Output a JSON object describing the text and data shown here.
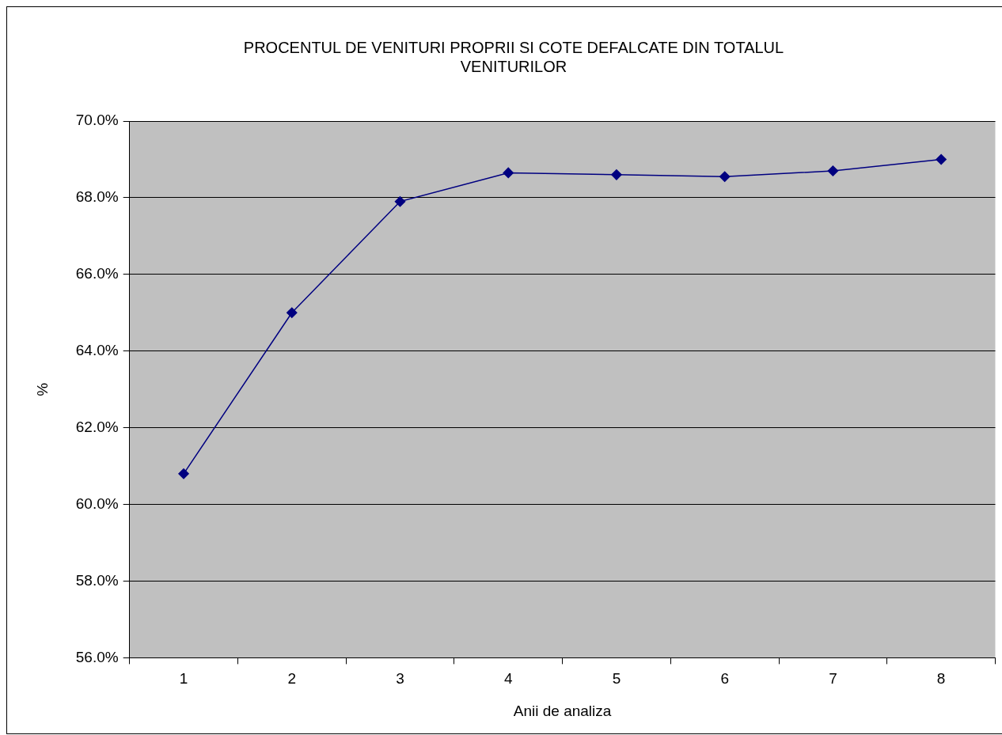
{
  "chart_data": {
    "type": "line",
    "title": "PROCENTUL DE VENITURI PROPRII SI COTE DEFALCATE DIN TOTALUL VENITURILOR",
    "xlabel": "Anii de analiza",
    "ylabel": "%",
    "categories": [
      "1",
      "2",
      "3",
      "4",
      "5",
      "6",
      "7",
      "8"
    ],
    "series": [
      {
        "color": "#000080",
        "values": [
          60.8,
          65.0,
          67.9,
          68.65,
          68.6,
          68.55,
          68.7,
          69.0
        ]
      }
    ],
    "ylim": [
      56,
      70
    ],
    "yticks": [
      {
        "value": 56,
        "label": "56.0%"
      },
      {
        "value": 58,
        "label": "58.0%"
      },
      {
        "value": 60,
        "label": "60.0%"
      },
      {
        "value": 62,
        "label": "62.0%"
      },
      {
        "value": 64,
        "label": "64.0%"
      },
      {
        "value": 66,
        "label": "66.0%"
      },
      {
        "value": 68,
        "label": "68.0%"
      },
      {
        "value": 70,
        "label": "70.0%"
      }
    ],
    "grid": "y",
    "legend": false,
    "marker": "diamond",
    "line_style": "solid"
  }
}
